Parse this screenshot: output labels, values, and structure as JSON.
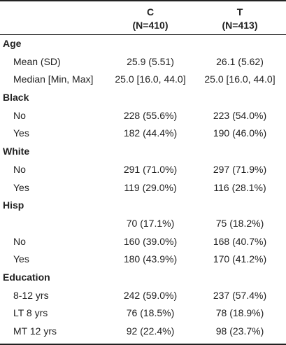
{
  "columns": [
    {
      "name": "C",
      "n": "(N=410)"
    },
    {
      "name": "T",
      "n": "(N=413)"
    }
  ],
  "rows": [
    {
      "type": "section",
      "label": "Age",
      "c": "",
      "t": ""
    },
    {
      "type": "data",
      "label": "Mean (SD)",
      "c": "25.9 (5.51)",
      "t": "26.1 (5.62)"
    },
    {
      "type": "data",
      "label": "Median [Min, Max]",
      "c": "25.0 [16.0, 44.0]",
      "t": "25.0 [16.0, 44.0]"
    },
    {
      "type": "section",
      "label": "Black",
      "c": "",
      "t": ""
    },
    {
      "type": "data",
      "label": "No",
      "c": "228 (55.6%)",
      "t": "223 (54.0%)"
    },
    {
      "type": "data",
      "label": "Yes",
      "c": "182 (44.4%)",
      "t": "190 (46.0%)"
    },
    {
      "type": "section",
      "label": "White",
      "c": "",
      "t": ""
    },
    {
      "type": "data",
      "label": "No",
      "c": "291 (71.0%)",
      "t": "297 (71.9%)"
    },
    {
      "type": "data",
      "label": "Yes",
      "c": "119 (29.0%)",
      "t": "116 (28.1%)"
    },
    {
      "type": "section",
      "label": "Hisp",
      "c": "",
      "t": ""
    },
    {
      "type": "data",
      "label": "",
      "c": "70 (17.1%)",
      "t": "75 (18.2%)"
    },
    {
      "type": "data",
      "label": "No",
      "c": "160 (39.0%)",
      "t": "168 (40.7%)"
    },
    {
      "type": "data",
      "label": "Yes",
      "c": "180 (43.9%)",
      "t": "170 (41.2%)"
    },
    {
      "type": "section",
      "label": "Education",
      "c": "",
      "t": ""
    },
    {
      "type": "data",
      "label": "8-12 yrs",
      "c": "242 (59.0%)",
      "t": "237 (57.4%)"
    },
    {
      "type": "data",
      "label": "LT 8 yrs",
      "c": "76 (18.5%)",
      "t": "78 (18.9%)"
    },
    {
      "type": "data",
      "label": "MT 12 yrs",
      "c": "92 (22.4%)",
      "t": "98 (23.7%)"
    }
  ]
}
